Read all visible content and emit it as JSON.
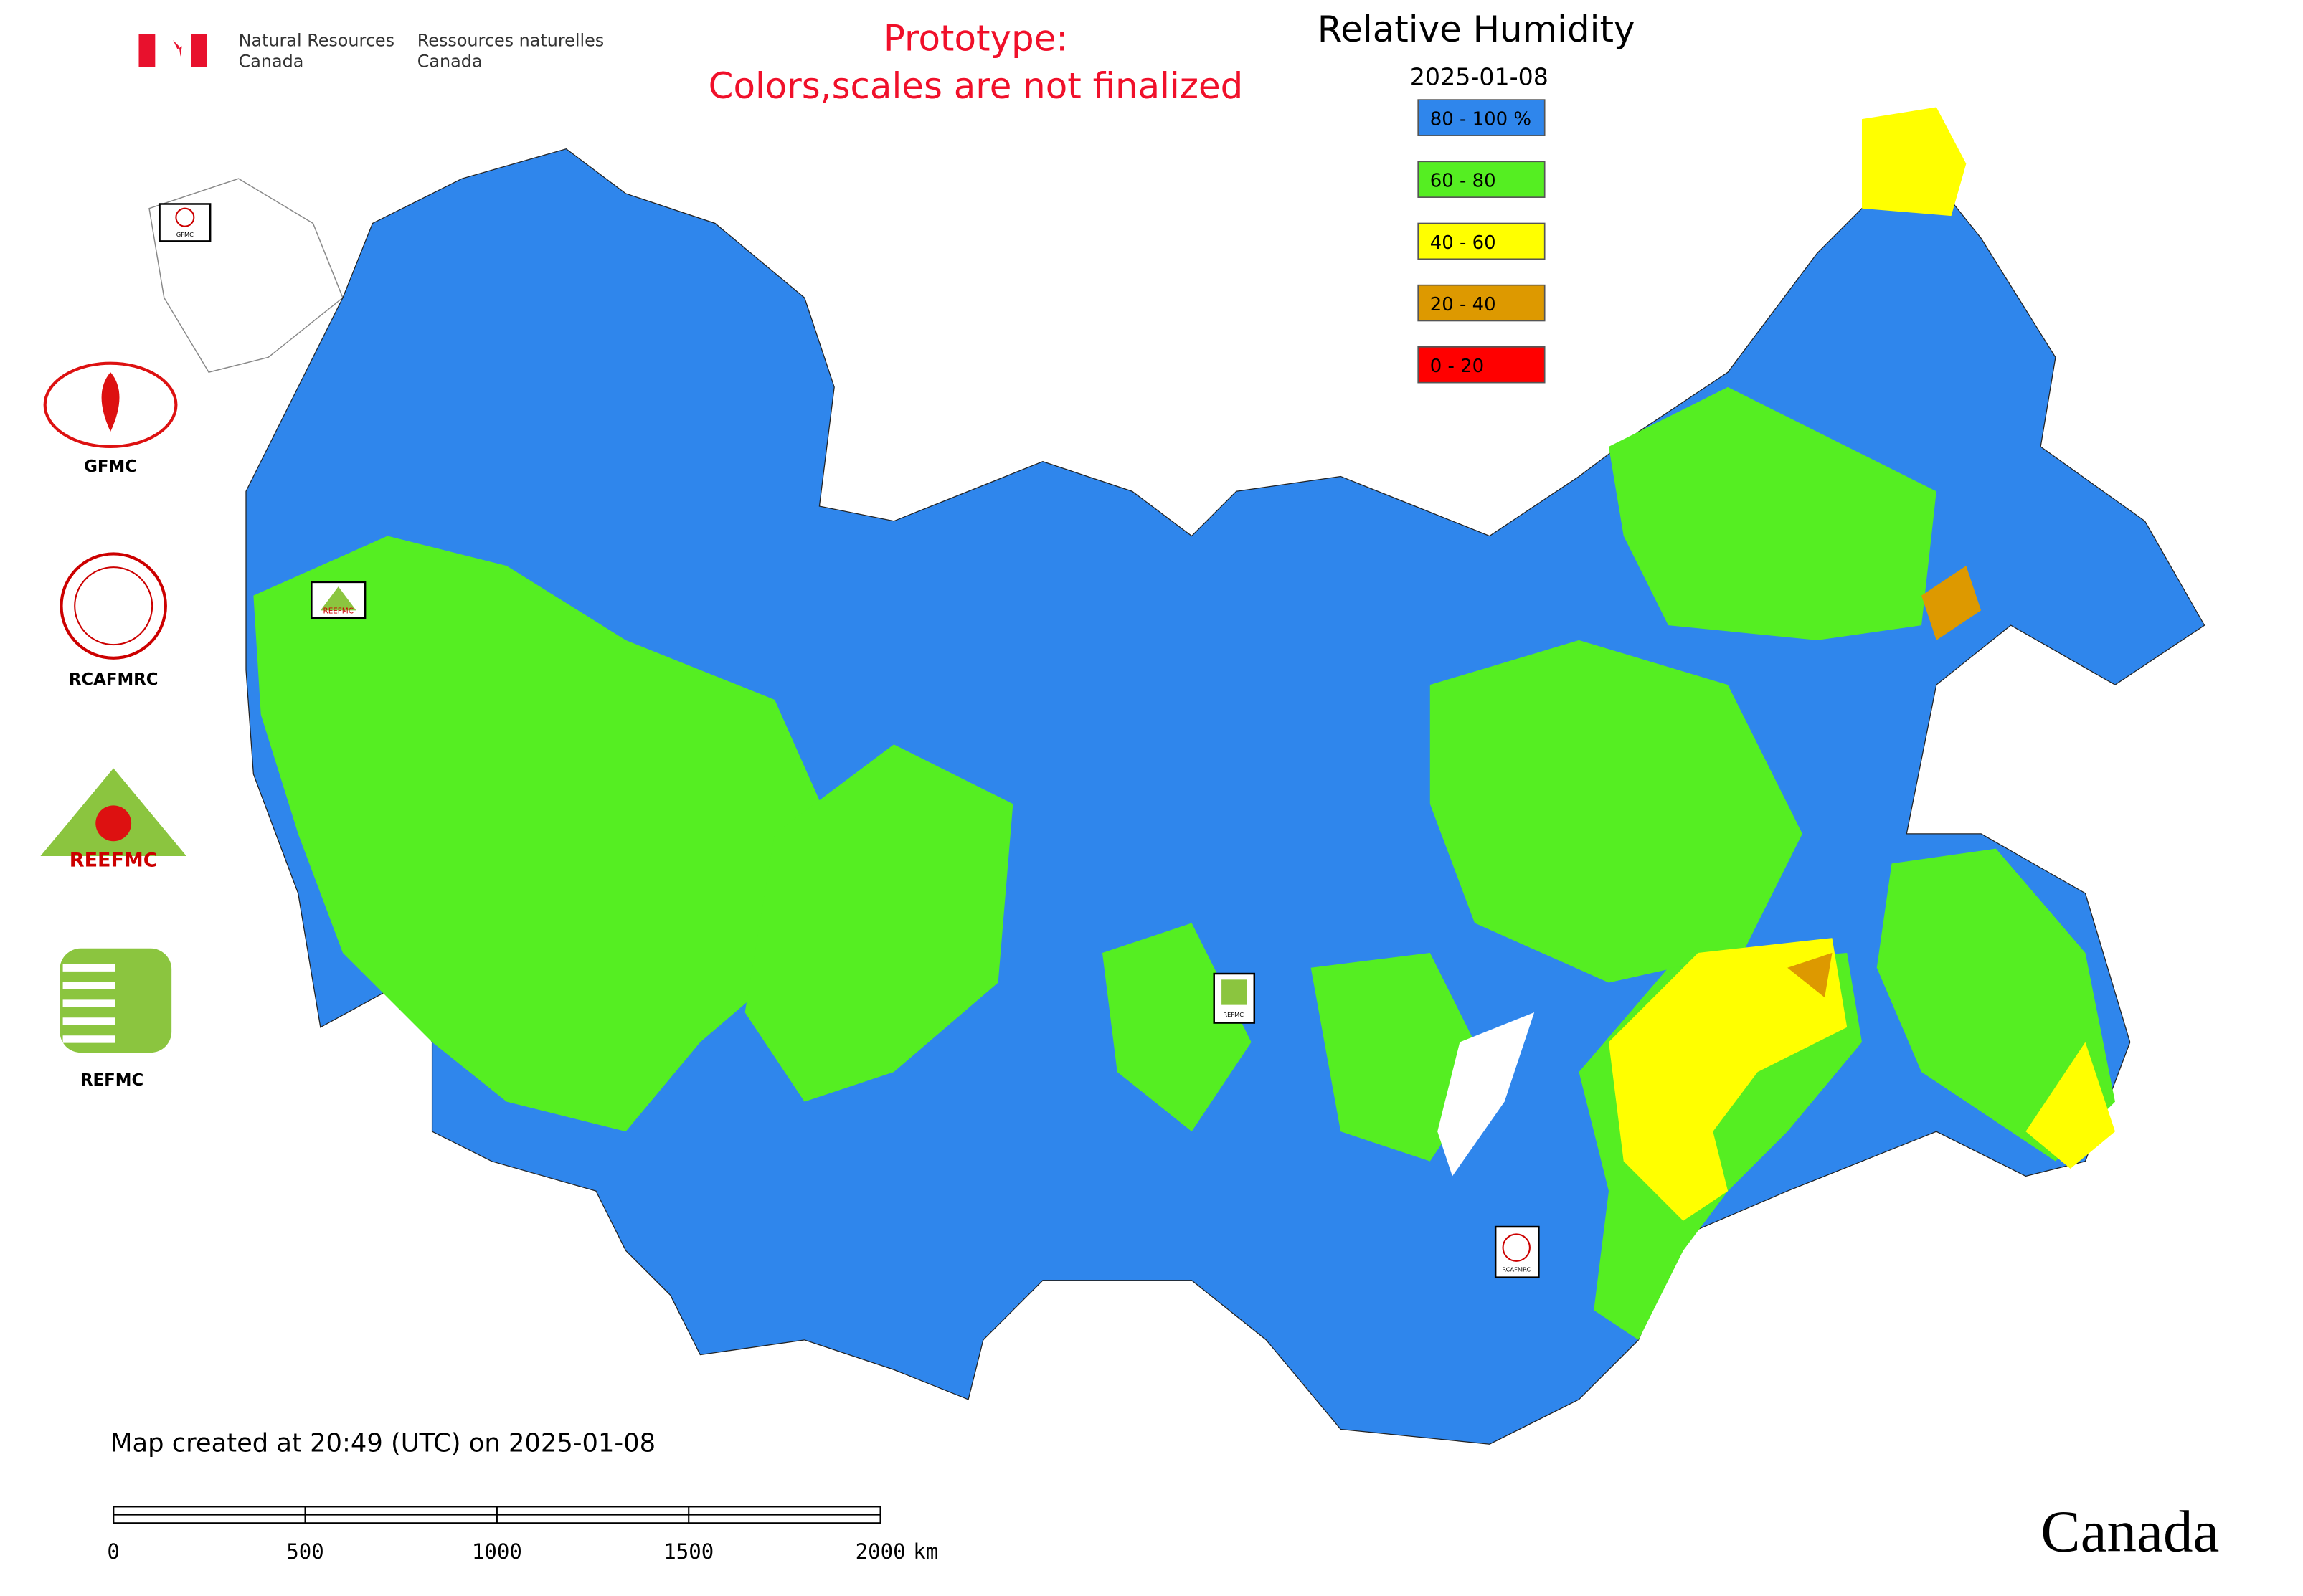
{
  "header": {
    "org_en": [
      "Natural Resources",
      "Canada"
    ],
    "org_fr": [
      "Ressources naturelles",
      "Canada"
    ],
    "notice": [
      "Prototype:",
      "Colors,scales are not finalized"
    ]
  },
  "map": {
    "title": "Relative Humidity",
    "date": "2025-01-08",
    "legend": [
      {
        "label": "80 - 100 %",
        "color": "#2f86ec"
      },
      {
        "label": "60 - 80",
        "color": "#55ee22"
      },
      {
        "label": "40 - 60",
        "color": "#ffff00"
      },
      {
        "label": "20 - 40",
        "color": "#dd9900"
      },
      {
        "label": "0 - 20",
        "color": "#ff0000"
      }
    ],
    "markers": [
      "GFMC",
      "REEFMC",
      "REFMC",
      "RCAFMRC"
    ]
  },
  "logos": [
    "GFMC",
    "RCAFMRC",
    "REEFMC",
    "REFMC"
  ],
  "footer": {
    "created": "Map created at 20:49 (UTC) on 2025-01-08",
    "scale_ticks": [
      0,
      500,
      1000,
      1500,
      2000
    ],
    "scale_unit": "km",
    "wordmark": "Canada"
  }
}
